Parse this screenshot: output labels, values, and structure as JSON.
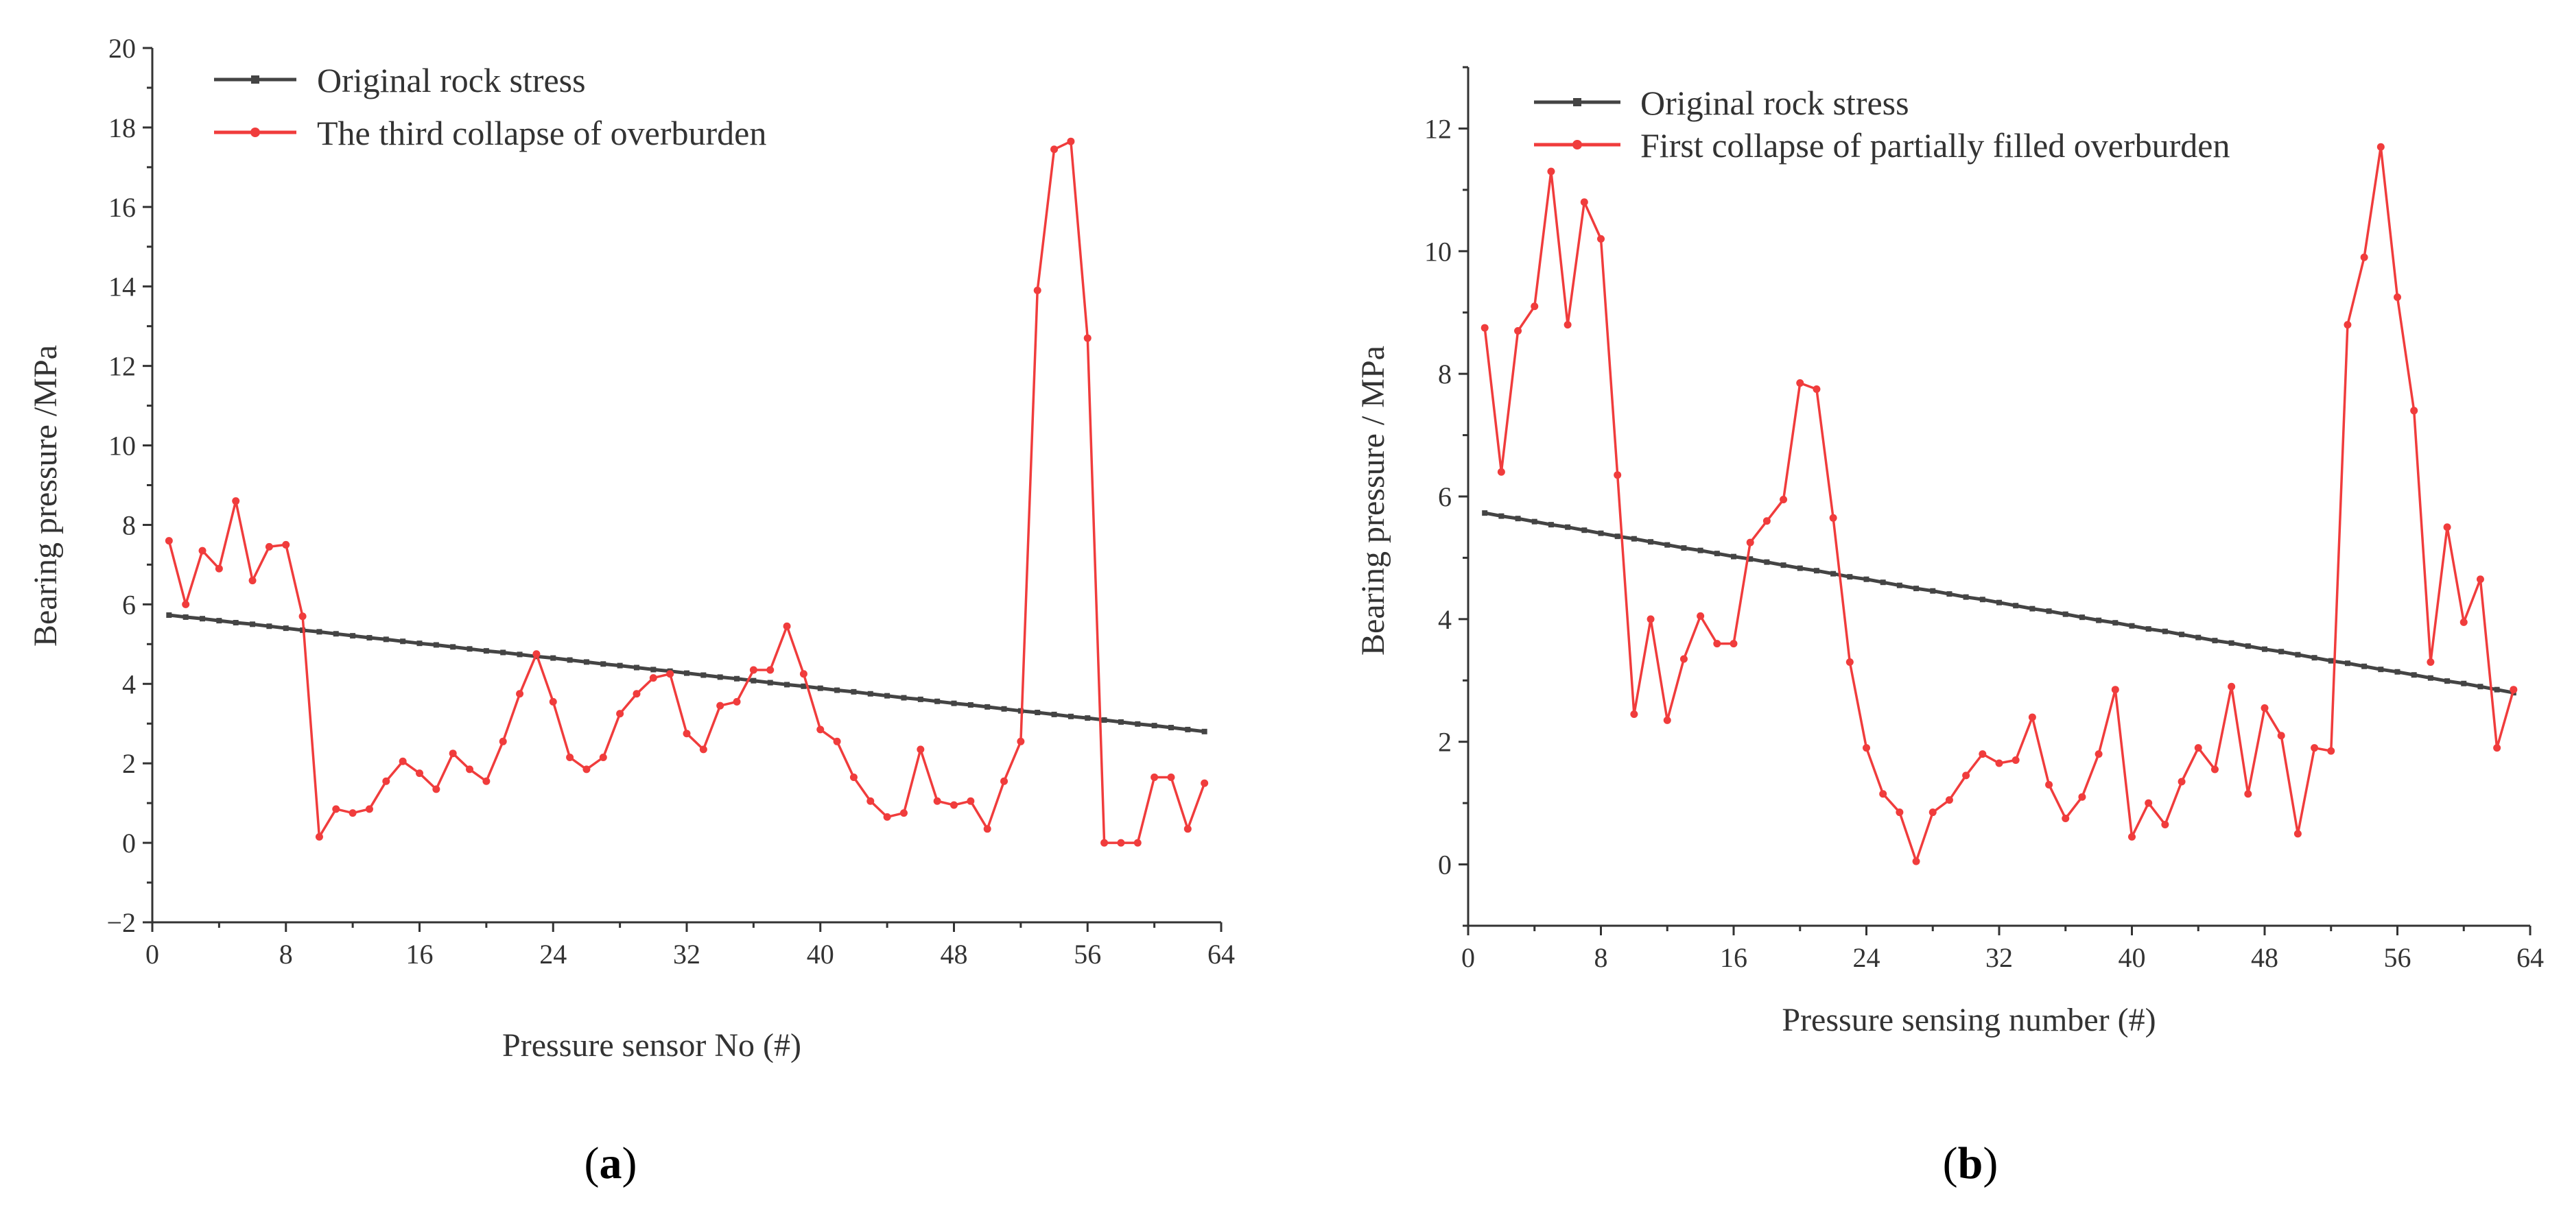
{
  "chart_data": [
    {
      "type": "line",
      "panel": "a",
      "xlabel": "Pressure sensor No (#)",
      "ylabel": "Bearing pressure /MPa",
      "xlim": [
        0,
        64
      ],
      "ylim": [
        -2,
        20
      ],
      "xticks": [
        0,
        8,
        16,
        24,
        32,
        40,
        48,
        56,
        64
      ],
      "yticks": [
        -2,
        0,
        2,
        4,
        6,
        8,
        10,
        12,
        14,
        16,
        18,
        20
      ],
      "legend_position": "top-left",
      "grid": false,
      "x": [
        1,
        2,
        3,
        4,
        5,
        6,
        7,
        8,
        9,
        10,
        11,
        12,
        13,
        14,
        15,
        16,
        17,
        18,
        19,
        20,
        21,
        22,
        23,
        24,
        25,
        26,
        27,
        28,
        29,
        30,
        31,
        32,
        33,
        34,
        35,
        36,
        37,
        38,
        39,
        40,
        41,
        42,
        43,
        44,
        45,
        46,
        47,
        48,
        49,
        50,
        51,
        52,
        53,
        54,
        55,
        56,
        57,
        58,
        59,
        60,
        61,
        62,
        63
      ],
      "series": [
        {
          "name": "Original rock stress",
          "color": "#444444",
          "values": [
            5.73,
            5.68,
            5.64,
            5.59,
            5.54,
            5.5,
            5.45,
            5.4,
            5.35,
            5.31,
            5.26,
            5.21,
            5.16,
            5.12,
            5.07,
            5.02,
            4.98,
            4.93,
            4.88,
            4.83,
            4.79,
            4.74,
            4.69,
            4.65,
            4.6,
            4.55,
            4.5,
            4.46,
            4.41,
            4.36,
            4.32,
            4.27,
            4.22,
            4.17,
            4.13,
            4.08,
            4.03,
            3.98,
            3.94,
            3.89,
            3.84,
            3.8,
            3.75,
            3.7,
            3.65,
            3.61,
            3.56,
            3.51,
            3.47,
            3.42,
            3.37,
            3.32,
            3.28,
            3.23,
            3.18,
            3.14,
            3.09,
            3.04,
            2.99,
            2.95,
            2.9,
            2.85,
            2.8
          ]
        },
        {
          "name": "The third collapse of overburden",
          "color": "#f03c3c",
          "values": [
            7.6,
            6.0,
            7.35,
            6.9,
            8.6,
            6.6,
            7.45,
            7.5,
            5.7,
            0.15,
            0.85,
            0.75,
            0.85,
            1.55,
            2.05,
            1.75,
            1.35,
            2.25,
            1.85,
            1.55,
            2.55,
            3.75,
            4.75,
            3.55,
            2.15,
            1.85,
            2.15,
            3.25,
            3.75,
            4.15,
            4.25,
            2.75,
            2.35,
            3.45,
            3.55,
            4.35,
            4.35,
            5.45,
            4.25,
            2.85,
            2.55,
            1.65,
            1.05,
            0.65,
            0.75,
            2.35,
            1.05,
            0.95,
            1.05,
            0.35,
            1.55,
            2.55,
            13.9,
            17.45,
            17.65,
            12.7,
            0.0,
            0.0,
            0.0,
            1.65,
            1.65,
            0.35,
            1.5
          ]
        }
      ]
    },
    {
      "type": "line",
      "panel": "b",
      "xlabel": "Pressure sensing number (#)",
      "ylabel": "Bearing pressure / MPa",
      "xlim": [
        0,
        64
      ],
      "ylim": [
        -1,
        13
      ],
      "xticks": [
        0,
        8,
        16,
        24,
        32,
        40,
        48,
        56,
        64
      ],
      "yticks": [
        0,
        2,
        4,
        6,
        8,
        10,
        12
      ],
      "legend_position": "top-left",
      "grid": false,
      "x": [
        1,
        2,
        3,
        4,
        5,
        6,
        7,
        8,
        9,
        10,
        11,
        12,
        13,
        14,
        15,
        16,
        17,
        18,
        19,
        20,
        21,
        22,
        23,
        24,
        25,
        26,
        27,
        28,
        29,
        30,
        31,
        32,
        33,
        34,
        35,
        36,
        37,
        38,
        39,
        40,
        41,
        42,
        43,
        44,
        45,
        46,
        47,
        48,
        49,
        50,
        51,
        52,
        53,
        54,
        55,
        56,
        57,
        58,
        59,
        60,
        61,
        62,
        63
      ],
      "series": [
        {
          "name": "Original rock stress",
          "color": "#444444",
          "values": [
            5.73,
            5.68,
            5.64,
            5.59,
            5.54,
            5.5,
            5.45,
            5.4,
            5.35,
            5.31,
            5.26,
            5.21,
            5.16,
            5.12,
            5.07,
            5.02,
            4.98,
            4.93,
            4.88,
            4.83,
            4.79,
            4.74,
            4.69,
            4.65,
            4.6,
            4.55,
            4.5,
            4.46,
            4.41,
            4.36,
            4.32,
            4.27,
            4.22,
            4.17,
            4.13,
            4.08,
            4.03,
            3.98,
            3.94,
            3.89,
            3.84,
            3.8,
            3.75,
            3.7,
            3.65,
            3.61,
            3.56,
            3.51,
            3.47,
            3.42,
            3.37,
            3.32,
            3.28,
            3.23,
            3.18,
            3.14,
            3.09,
            3.04,
            2.99,
            2.95,
            2.9,
            2.85,
            2.8
          ]
        },
        {
          "name": "First collapse of partially filled overburden",
          "color": "#f03c3c",
          "values": [
            8.75,
            6.4,
            8.7,
            9.1,
            11.3,
            8.8,
            10.8,
            10.2,
            6.35,
            2.45,
            4.0,
            2.35,
            3.35,
            4.05,
            3.6,
            3.6,
            5.25,
            5.6,
            5.95,
            7.85,
            7.75,
            5.65,
            3.3,
            1.9,
            1.15,
            0.85,
            0.05,
            0.85,
            1.05,
            1.45,
            1.8,
            1.65,
            1.7,
            2.4,
            1.3,
            0.75,
            1.1,
            1.8,
            2.85,
            0.45,
            1.0,
            0.65,
            1.35,
            1.9,
            1.55,
            2.9,
            1.15,
            2.55,
            2.1,
            0.5,
            1.9,
            1.85,
            8.8,
            9.9,
            11.7,
            9.25,
            7.4,
            3.3,
            5.5,
            3.95,
            4.65,
            1.9,
            2.85
          ]
        }
      ]
    }
  ],
  "panel_labels": {
    "a": {
      "open": "(",
      "letter": "a",
      "close": ")"
    },
    "b": {
      "open": "(",
      "letter": "b",
      "close": ")"
    }
  }
}
